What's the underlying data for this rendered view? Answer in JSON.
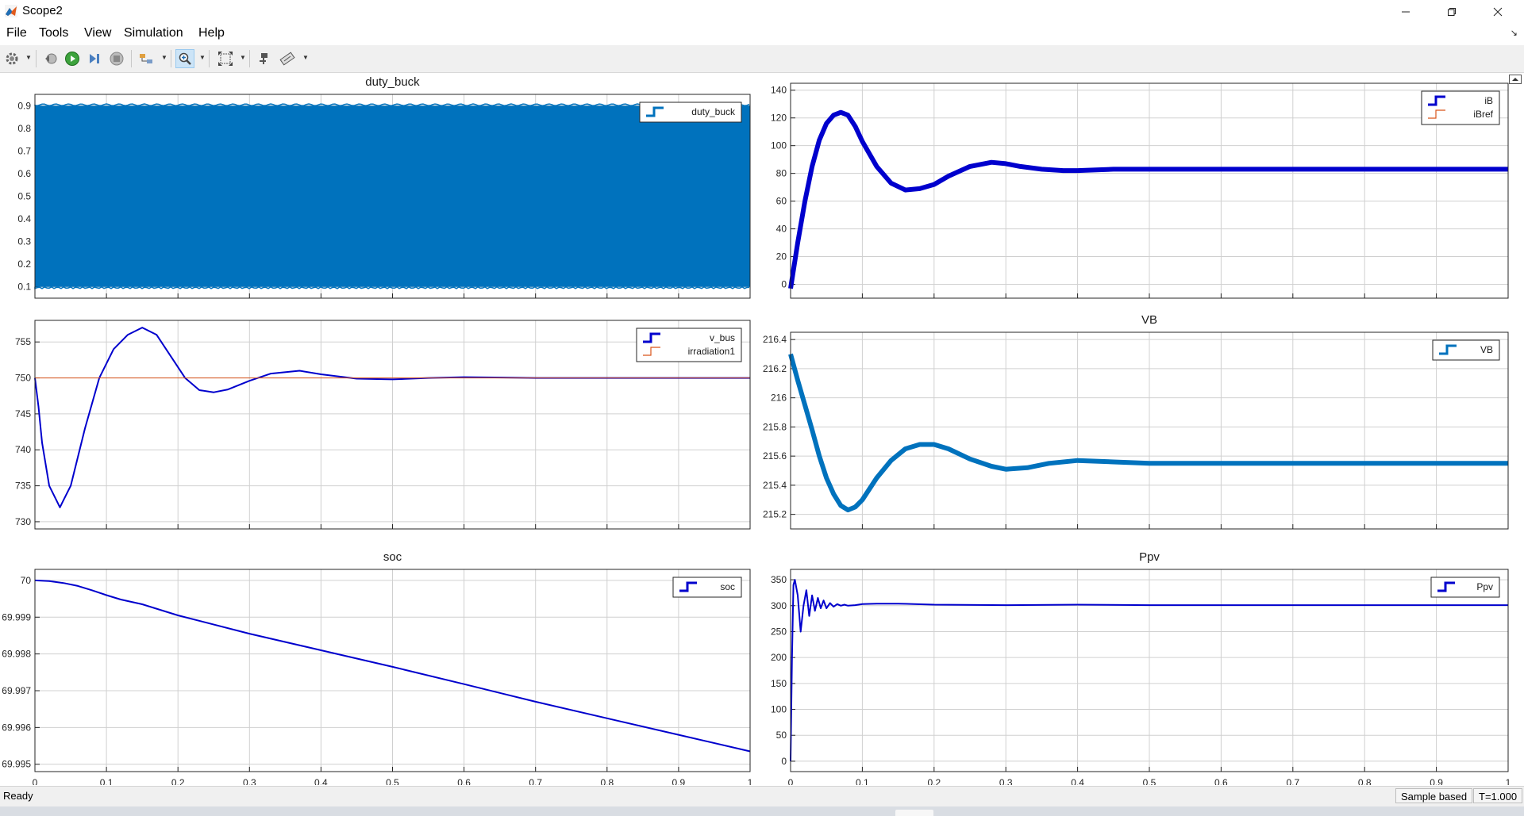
{
  "window": {
    "title": "Scope2"
  },
  "menu": {
    "items": [
      "File",
      "Tools",
      "View",
      "Simulation",
      "Help"
    ]
  },
  "toolbar": {
    "zoom_active": true
  },
  "status": {
    "left": "Ready",
    "sample": "Sample based",
    "time": "T=1.000"
  },
  "colors": {
    "fill": "#0072bd",
    "signal": "#0000cd",
    "reference": "#d95319",
    "grid": "#d0d0d0"
  },
  "chart_data": [
    {
      "type": "line",
      "title": "duty_buck",
      "xlim": [
        0,
        1
      ],
      "ylim": [
        0.05,
        0.95
      ],
      "yticks": [
        "0.1",
        "0.2",
        "0.3",
        "0.4",
        "0.5",
        "0.6",
        "0.7",
        "0.8",
        "0.9"
      ],
      "xticks": [],
      "grid": true,
      "legend_position": "top-right",
      "series": [
        {
          "name": "duty_buck",
          "color": "#0072bd",
          "kind": "band",
          "lower": 0.1,
          "upper": 0.9
        }
      ]
    },
    {
      "type": "line",
      "title": "",
      "xlim": [
        0,
        1
      ],
      "ylim": [
        -10,
        145
      ],
      "yticks": [
        "0",
        "20",
        "40",
        "60",
        "80",
        "100",
        "120",
        "140"
      ],
      "xticks": [],
      "grid": true,
      "legend_position": "top-right",
      "series": [
        {
          "name": "iB",
          "color": "#0000cd",
          "width": 6,
          "x": [
            0,
            0.01,
            0.02,
            0.03,
            0.04,
            0.05,
            0.06,
            0.07,
            0.08,
            0.09,
            0.1,
            0.12,
            0.14,
            0.16,
            0.18,
            0.2,
            0.22,
            0.25,
            0.28,
            0.3,
            0.32,
            0.35,
            0.38,
            0.4,
            0.45,
            0.5,
            0.6,
            0.7,
            0.8,
            0.9,
            1.0
          ],
          "y": [
            -3,
            30,
            60,
            85,
            104,
            116,
            122,
            124,
            122,
            114,
            103,
            85,
            73,
            68,
            69,
            72,
            78,
            85,
            88,
            87,
            85,
            83,
            82,
            82,
            83,
            83,
            83,
            83,
            83,
            83,
            83
          ]
        },
        {
          "name": "iBref",
          "color": "#d95319",
          "width": 1,
          "x": [],
          "y": []
        }
      ]
    },
    {
      "type": "line",
      "title": "",
      "xlim": [
        0,
        1
      ],
      "ylim": [
        729,
        758
      ],
      "yticks": [
        "730",
        "735",
        "740",
        "745",
        "750",
        "755"
      ],
      "xticks": [],
      "grid": true,
      "legend_position": "top-right",
      "series": [
        {
          "name": "v_bus",
          "color": "#0000cd",
          "width": 2,
          "x": [
            0,
            0.005,
            0.01,
            0.02,
            0.03,
            0.035,
            0.04,
            0.05,
            0.07,
            0.09,
            0.11,
            0.13,
            0.15,
            0.17,
            0.19,
            0.21,
            0.23,
            0.25,
            0.27,
            0.3,
            0.33,
            0.37,
            0.4,
            0.45,
            0.5,
            0.55,
            0.6,
            0.7,
            0.8,
            0.9,
            1.0
          ],
          "y": [
            750,
            746,
            741,
            735,
            733,
            732,
            733,
            735,
            743,
            750,
            754,
            756,
            757,
            756,
            753,
            750,
            748.3,
            748,
            748.4,
            749.6,
            750.6,
            751,
            750.5,
            749.9,
            749.8,
            750,
            750.1,
            750,
            750,
            750,
            750
          ]
        },
        {
          "name": "irradiation1",
          "color": "#d95319",
          "width": 1,
          "x": [
            0,
            1
          ],
          "y": [
            750,
            750
          ]
        }
      ]
    },
    {
      "type": "line",
      "title": "VB",
      "xlim": [
        0,
        1
      ],
      "ylim": [
        215.1,
        216.45
      ],
      "yticks": [
        "215.2",
        "215.4",
        "215.6",
        "215.8",
        "216",
        "216.2",
        "216.4"
      ],
      "xticks": [],
      "grid": true,
      "legend_position": "top-right",
      "series": [
        {
          "name": "VB",
          "color": "#0072bd",
          "width": 6,
          "x": [
            0,
            0.01,
            0.02,
            0.03,
            0.04,
            0.05,
            0.06,
            0.07,
            0.08,
            0.09,
            0.1,
            0.12,
            0.14,
            0.16,
            0.18,
            0.2,
            0.22,
            0.25,
            0.28,
            0.3,
            0.33,
            0.36,
            0.4,
            0.45,
            0.5,
            0.6,
            0.7,
            0.8,
            0.9,
            1.0
          ],
          "y": [
            216.3,
            216.12,
            215.95,
            215.78,
            215.6,
            215.45,
            215.34,
            215.26,
            215.23,
            215.25,
            215.3,
            215.45,
            215.57,
            215.65,
            215.68,
            215.68,
            215.65,
            215.58,
            215.53,
            215.51,
            215.52,
            215.55,
            215.57,
            215.56,
            215.55,
            215.55,
            215.55,
            215.55,
            215.55,
            215.55
          ]
        }
      ]
    },
    {
      "type": "line",
      "title": "soc",
      "xlim": [
        0,
        1
      ],
      "ylim": [
        69.9948,
        70.0003
      ],
      "yticks": [
        "69.995",
        "69.996",
        "69.997",
        "69.998",
        "69.999",
        "70"
      ],
      "xticks": [
        "0",
        "0.1",
        "0.2",
        "0.3",
        "0.4",
        "0.5",
        "0.6",
        "0.7",
        "0.8",
        "0.9",
        "1"
      ],
      "grid": true,
      "legend_position": "top-right",
      "series": [
        {
          "name": "soc",
          "color": "#0000cd",
          "width": 2,
          "x": [
            0,
            0.02,
            0.04,
            0.06,
            0.08,
            0.1,
            0.12,
            0.15,
            0.2,
            0.3,
            0.4,
            0.5,
            0.6,
            0.7,
            0.8,
            0.9,
            1.0
          ],
          "y": [
            70,
            69.99998,
            69.99993,
            69.99985,
            69.99973,
            69.9996,
            69.99948,
            69.99935,
            69.99905,
            69.99855,
            69.9981,
            69.99765,
            69.99718,
            69.9967,
            69.99625,
            69.9958,
            69.99535
          ]
        }
      ]
    },
    {
      "type": "line",
      "title": "Ppv",
      "xlim": [
        0,
        1
      ],
      "ylim": [
        -20,
        370
      ],
      "yticks": [
        "0",
        "50",
        "100",
        "150",
        "200",
        "250",
        "300",
        "350"
      ],
      "xticks": [
        "0",
        "0.1",
        "0.2",
        "0.3",
        "0.4",
        "0.5",
        "0.6",
        "0.7",
        "0.8",
        "0.9",
        "1"
      ],
      "grid": true,
      "legend_position": "top-right",
      "series": [
        {
          "name": "Ppv",
          "color": "#0000cd",
          "width": 2,
          "x": [
            0,
            0.002,
            0.004,
            0.006,
            0.01,
            0.014,
            0.018,
            0.022,
            0.026,
            0.03,
            0.034,
            0.038,
            0.042,
            0.046,
            0.05,
            0.055,
            0.06,
            0.065,
            0.07,
            0.075,
            0.08,
            0.09,
            0.1,
            0.12,
            0.15,
            0.2,
            0.3,
            0.4,
            0.5,
            0.6,
            0.7,
            0.8,
            0.9,
            1.0
          ],
          "y": [
            0,
            200,
            340,
            350,
            320,
            250,
            300,
            330,
            280,
            320,
            290,
            315,
            295,
            310,
            295,
            305,
            298,
            303,
            300,
            302,
            300,
            301,
            303,
            304,
            304,
            302,
            301,
            302,
            301,
            301,
            301,
            301,
            301,
            301
          ]
        }
      ]
    }
  ]
}
